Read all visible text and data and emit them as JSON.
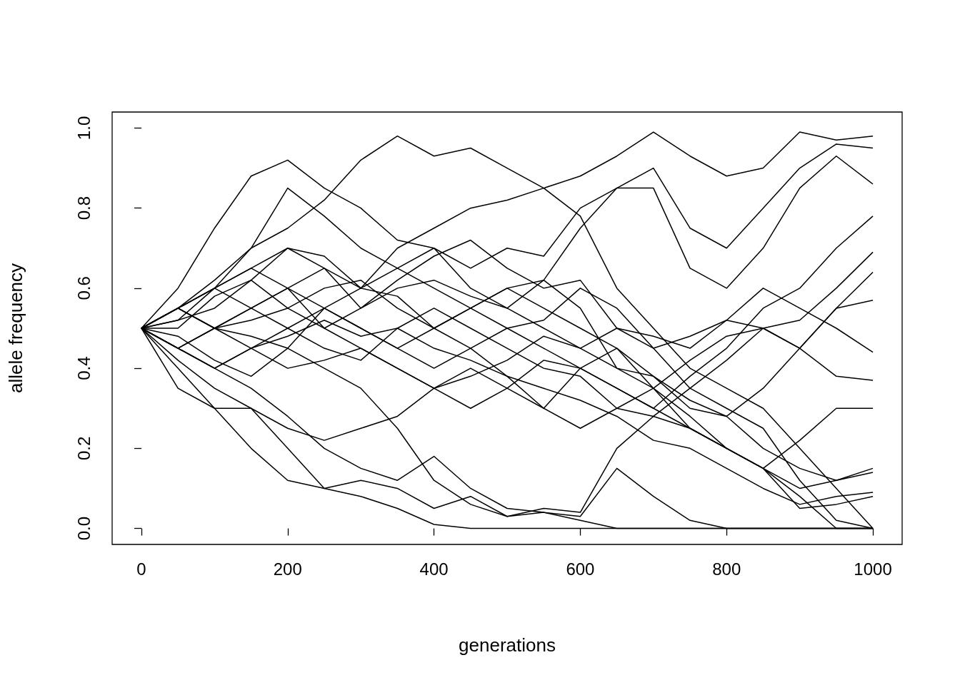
{
  "chart_data": {
    "type": "line",
    "xlabel": "generations",
    "ylabel": "allele frequency",
    "x": [
      0,
      50,
      100,
      150,
      200,
      250,
      300,
      350,
      400,
      450,
      500,
      550,
      600,
      650,
      700,
      750,
      800,
      850,
      900,
      950,
      1000
    ],
    "xlim": [
      -40,
      1040
    ],
    "xticks": [
      0,
      200,
      400,
      600,
      800,
      1000
    ],
    "ylim": [
      -0.04,
      1.04
    ],
    "yticks": [
      {
        "value": 0,
        "label": "0.0"
      },
      {
        "value": 0.2,
        "label": "0.2"
      },
      {
        "value": 0.4,
        "label": "0.4"
      },
      {
        "value": 0.6,
        "label": "0.6"
      },
      {
        "value": 0.8,
        "label": "0.8"
      },
      {
        "value": 1,
        "label": "1.0"
      }
    ],
    "series": [
      {
        "color": "#000000",
        "values": [
          0.5,
          0.55,
          0.6,
          0.7,
          0.75,
          0.82,
          0.92,
          0.98,
          0.93,
          0.95,
          0.9,
          0.85,
          0.78,
          0.6,
          0.5,
          0.4,
          0.35,
          0.3,
          0.2,
          0.1,
          0
        ]
      },
      {
        "color": "#000000",
        "values": [
          0.5,
          0.45,
          0.5,
          0.55,
          0.6,
          0.65,
          0.6,
          0.7,
          0.75,
          0.8,
          0.82,
          0.85,
          0.88,
          0.93,
          0.99,
          0.93,
          0.88,
          0.9,
          0.99,
          0.97,
          0.98
        ]
      },
      {
        "color": "#000000",
        "values": [
          0.5,
          0.6,
          0.75,
          0.88,
          0.92,
          0.85,
          0.8,
          0.72,
          0.7,
          0.65,
          0.7,
          0.68,
          0.8,
          0.85,
          0.9,
          0.75,
          0.7,
          0.8,
          0.9,
          0.96,
          0.95
        ]
      },
      {
        "color": "#000000",
        "values": [
          0.5,
          0.55,
          0.6,
          0.65,
          0.7,
          0.68,
          0.6,
          0.65,
          0.7,
          0.6,
          0.55,
          0.62,
          0.75,
          0.85,
          0.85,
          0.65,
          0.6,
          0.7,
          0.85,
          0.93,
          0.86
        ]
      },
      {
        "color": "#000000",
        "values": [
          0.5,
          0.45,
          0.4,
          0.45,
          0.5,
          0.55,
          0.5,
          0.45,
          0.4,
          0.45,
          0.5,
          0.45,
          0.4,
          0.35,
          0.3,
          0.38,
          0.45,
          0.55,
          0.6,
          0.7,
          0.78
        ]
      },
      {
        "color": "#000000",
        "values": [
          0.5,
          0.52,
          0.6,
          0.55,
          0.5,
          0.45,
          0.42,
          0.5,
          0.55,
          0.5,
          0.45,
          0.4,
          0.38,
          0.3,
          0.28,
          0.35,
          0.42,
          0.5,
          0.52,
          0.6,
          0.69
        ]
      },
      {
        "color": "#000000",
        "values": [
          0.5,
          0.48,
          0.42,
          0.38,
          0.45,
          0.55,
          0.6,
          0.58,
          0.5,
          0.55,
          0.6,
          0.55,
          0.5,
          0.45,
          0.38,
          0.32,
          0.28,
          0.35,
          0.45,
          0.55,
          0.64
        ]
      },
      {
        "color": "#000000",
        "values": [
          0.5,
          0.55,
          0.6,
          0.65,
          0.6,
          0.55,
          0.5,
          0.45,
          0.5,
          0.45,
          0.38,
          0.3,
          0.4,
          0.45,
          0.35,
          0.42,
          0.48,
          0.5,
          0.45,
          0.55,
          0.57
        ]
      },
      {
        "color": "#000000",
        "values": [
          0.5,
          0.52,
          0.55,
          0.62,
          0.7,
          0.65,
          0.55,
          0.62,
          0.68,
          0.72,
          0.65,
          0.6,
          0.62,
          0.5,
          0.48,
          0.45,
          0.52,
          0.6,
          0.55,
          0.5,
          0.44
        ]
      },
      {
        "color": "#000000",
        "values": [
          0.5,
          0.45,
          0.5,
          0.55,
          0.6,
          0.5,
          0.45,
          0.4,
          0.35,
          0.38,
          0.42,
          0.48,
          0.45,
          0.5,
          0.45,
          0.48,
          0.52,
          0.5,
          0.45,
          0.38,
          0.37
        ]
      },
      {
        "color": "#000000",
        "values": [
          0.5,
          0.42,
          0.35,
          0.3,
          0.25,
          0.22,
          0.25,
          0.28,
          0.35,
          0.4,
          0.35,
          0.3,
          0.25,
          0.3,
          0.35,
          0.25,
          0.2,
          0.15,
          0.22,
          0.3,
          0.3
        ]
      },
      {
        "color": "#000000",
        "values": [
          0.5,
          0.55,
          0.5,
          0.45,
          0.4,
          0.42,
          0.45,
          0.4,
          0.35,
          0.3,
          0.35,
          0.42,
          0.4,
          0.35,
          0.3,
          0.25,
          0.2,
          0.15,
          0.1,
          0.12,
          0.15
        ]
      },
      {
        "color": "#000000",
        "values": [
          0.5,
          0.5,
          0.58,
          0.62,
          0.55,
          0.5,
          0.55,
          0.6,
          0.62,
          0.58,
          0.55,
          0.5,
          0.45,
          0.4,
          0.38,
          0.3,
          0.28,
          0.2,
          0.15,
          0.12,
          0.14
        ]
      },
      {
        "color": "#000000",
        "values": [
          0.5,
          0.45,
          0.4,
          0.45,
          0.48,
          0.52,
          0.48,
          0.5,
          0.45,
          0.42,
          0.38,
          0.35,
          0.32,
          0.28,
          0.22,
          0.2,
          0.15,
          0.1,
          0.06,
          0.08,
          0.09
        ]
      },
      {
        "color": "#000000",
        "values": [
          0.5,
          0.4,
          0.3,
          0.2,
          0.12,
          0.1,
          0.12,
          0.1,
          0.05,
          0.08,
          0.03,
          0.05,
          0.04,
          0.2,
          0.28,
          0.25,
          0.2,
          0.15,
          0.05,
          0.06,
          0.08
        ]
      },
      {
        "color": "#000000",
        "values": [
          0.5,
          0.35,
          0.3,
          0.3,
          0.2,
          0.1,
          0.08,
          0.05,
          0.01,
          0,
          0,
          0,
          0,
          0,
          0,
          0,
          0,
          0,
          0,
          0,
          0
        ]
      },
      {
        "color": "#000000",
        "values": [
          0.5,
          0.45,
          0.4,
          0.35,
          0.28,
          0.2,
          0.15,
          0.12,
          0.18,
          0.1,
          0.05,
          0.04,
          0.03,
          0.15,
          0.08,
          0.02,
          0,
          0,
          0,
          0,
          0
        ]
      },
      {
        "color": "#000000",
        "values": [
          0.5,
          0.55,
          0.5,
          0.48,
          0.45,
          0.4,
          0.35,
          0.25,
          0.12,
          0.06,
          0.03,
          0.04,
          0.02,
          0,
          0,
          0,
          0,
          0,
          0,
          0,
          0
        ]
      },
      {
        "color": "#000000",
        "values": [
          0.5,
          0.55,
          0.62,
          0.7,
          0.85,
          0.78,
          0.7,
          0.65,
          0.6,
          0.55,
          0.5,
          0.52,
          0.6,
          0.55,
          0.45,
          0.35,
          0.3,
          0.25,
          0.12,
          0.02,
          0
        ]
      },
      {
        "color": "#000000",
        "values": [
          0.5,
          0.55,
          0.5,
          0.52,
          0.55,
          0.6,
          0.62,
          0.55,
          0.5,
          0.55,
          0.6,
          0.62,
          0.55,
          0.4,
          0.35,
          0.28,
          0.2,
          0.15,
          0.08,
          0,
          0
        ]
      }
    ]
  }
}
